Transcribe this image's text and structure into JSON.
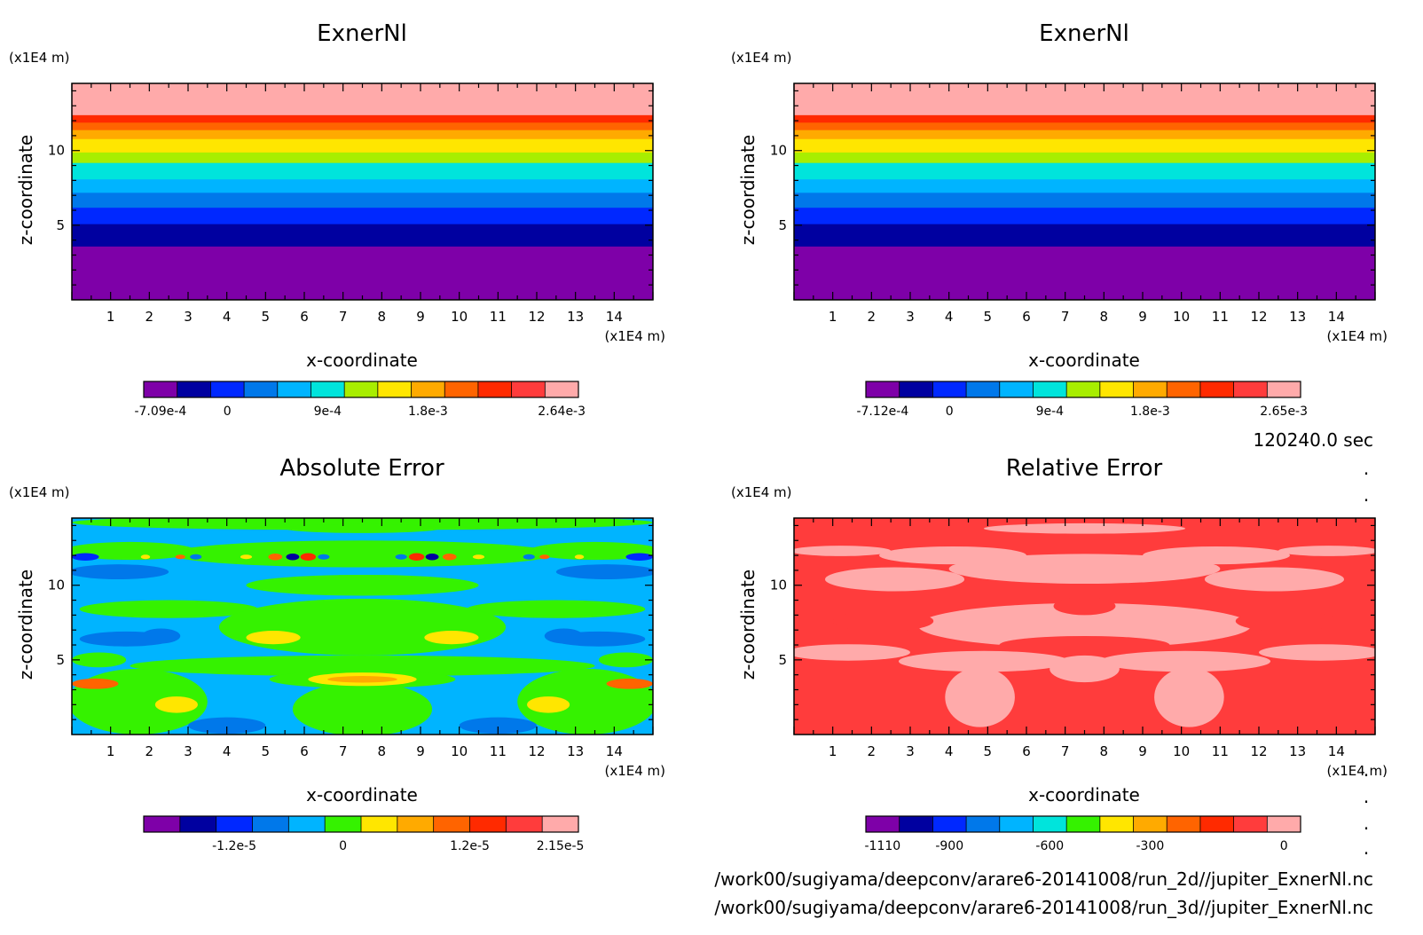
{
  "time_label": "120240.0 sec",
  "files": [
    "/work00/sugiyama/deepconv/arare6-20141008/run_2d//jupiter_ExnerNl.nc",
    "/work00/sugiyama/deepconv/arare6-20141008/run_3d//jupiter_ExnerNl.nc"
  ],
  "colors": {
    "c0": "#7e00a8",
    "c1": "#0000a0",
    "c2": "#0028ff",
    "c3": "#0078ea",
    "c4": "#00b4ff",
    "c5": "#00e4dc",
    "c6": "#35f200",
    "c7": "#a8ee00",
    "c8": "#ffe600",
    "c9": "#ffaa00",
    "c10": "#ff6400",
    "c11": "#ff2a00",
    "c12": "#ff3c3c",
    "c13": "#ffaaaa"
  },
  "chart_data": [
    {
      "type": "heatmap",
      "title": "ExnerNl",
      "xlabel": "x-coordinate",
      "ylabel": "z-coordinate",
      "x_unit": "(x1E4 m)",
      "z_unit": "(x1E4 m)",
      "xlim": [
        0,
        15
      ],
      "zlim": [
        0,
        14.5
      ],
      "xticks": [
        1,
        2,
        3,
        4,
        5,
        6,
        7,
        8,
        9,
        10,
        11,
        12,
        13,
        14
      ],
      "zticks": [
        5,
        10
      ],
      "pattern": "horizontal-bands",
      "bands": [
        {
          "z0": 0,
          "z1": 3.6,
          "color": "c0"
        },
        {
          "z0": 3.6,
          "z1": 5.1,
          "color": "c1"
        },
        {
          "z0": 5.1,
          "z1": 6.2,
          "color": "c2"
        },
        {
          "z0": 6.2,
          "z1": 7.2,
          "color": "c3"
        },
        {
          "z0": 7.2,
          "z1": 8.1,
          "color": "c4"
        },
        {
          "z0": 8.1,
          "z1": 9.2,
          "color": "c5"
        },
        {
          "z0": 9.2,
          "z1": 9.9,
          "color": "c7"
        },
        {
          "z0": 9.9,
          "z1": 10.8,
          "color": "c8"
        },
        {
          "z0": 10.8,
          "z1": 11.4,
          "color": "c9"
        },
        {
          "z0": 11.4,
          "z1": 11.9,
          "color": "c10"
        },
        {
          "z0": 11.9,
          "z1": 12.4,
          "color": "c11"
        },
        {
          "z0": 12.4,
          "z1": 14.5,
          "color": "c13"
        }
      ],
      "colorbar": {
        "colors": [
          "c0",
          "c1",
          "c2",
          "c3",
          "c4",
          "c5",
          "c7",
          "c8",
          "c9",
          "c10",
          "c11",
          "c12",
          "c13"
        ],
        "labels": [
          "-7.09e-4",
          "0",
          "9e-4",
          "1.8e-3",
          "2.64e-3"
        ]
      }
    },
    {
      "type": "heatmap",
      "title": "ExnerNl",
      "xlabel": "x-coordinate",
      "ylabel": "z-coordinate",
      "x_unit": "(x1E4 m)",
      "z_unit": "(x1E4 m)",
      "xlim": [
        0,
        15
      ],
      "zlim": [
        0,
        14.5
      ],
      "xticks": [
        1,
        2,
        3,
        4,
        5,
        6,
        7,
        8,
        9,
        10,
        11,
        12,
        13,
        14
      ],
      "zticks": [
        5,
        10
      ],
      "pattern": "horizontal-bands",
      "bands": [
        {
          "z0": 0,
          "z1": 3.6,
          "color": "c0"
        },
        {
          "z0": 3.6,
          "z1": 5.1,
          "color": "c1"
        },
        {
          "z0": 5.1,
          "z1": 6.2,
          "color": "c2"
        },
        {
          "z0": 6.2,
          "z1": 7.2,
          "color": "c3"
        },
        {
          "z0": 7.2,
          "z1": 8.1,
          "color": "c4"
        },
        {
          "z0": 8.1,
          "z1": 9.2,
          "color": "c5"
        },
        {
          "z0": 9.2,
          "z1": 9.9,
          "color": "c7"
        },
        {
          "z0": 9.9,
          "z1": 10.8,
          "color": "c8"
        },
        {
          "z0": 10.8,
          "z1": 11.4,
          "color": "c9"
        },
        {
          "z0": 11.4,
          "z1": 11.9,
          "color": "c10"
        },
        {
          "z0": 11.9,
          "z1": 12.4,
          "color": "c11"
        },
        {
          "z0": 12.4,
          "z1": 14.5,
          "color": "c13"
        }
      ],
      "colorbar": {
        "colors": [
          "c0",
          "c1",
          "c2",
          "c3",
          "c4",
          "c5",
          "c7",
          "c8",
          "c9",
          "c10",
          "c11",
          "c12",
          "c13"
        ],
        "labels": [
          "-7.12e-4",
          "0",
          "9e-4",
          "1.8e-3",
          "2.65e-3"
        ]
      }
    },
    {
      "type": "heatmap",
      "title": "Absolute Error",
      "xlabel": "x-coordinate",
      "ylabel": "z-coordinate",
      "x_unit": "(x1E4 m)",
      "z_unit": "(x1E4 m)",
      "xlim": [
        0,
        15
      ],
      "zlim": [
        0,
        14.5
      ],
      "xticks": [
        1,
        2,
        3,
        4,
        5,
        6,
        7,
        8,
        9,
        10,
        11,
        12,
        13,
        14
      ],
      "zticks": [
        5,
        10
      ],
      "pattern": "blobs",
      "background": "c4",
      "blobs": [
        {
          "x": 7.5,
          "z": 14.2,
          "rx": 7.5,
          "rz": 0.5,
          "color": "c6"
        },
        {
          "x": 7.5,
          "z": 13.8,
          "rx": 2.0,
          "rz": 0.3,
          "color": "c6"
        },
        {
          "x": 1.5,
          "z": 12.3,
          "rx": 1.7,
          "rz": 0.6,
          "color": "c6"
        },
        {
          "x": 13.5,
          "z": 12.3,
          "rx": 1.7,
          "rz": 0.6,
          "color": "c6"
        },
        {
          "x": 7.5,
          "z": 12.1,
          "rx": 5.0,
          "rz": 0.9,
          "color": "c6"
        },
        {
          "x": 7.5,
          "z": 10.0,
          "rx": 3.0,
          "rz": 0.7,
          "color": "c6"
        },
        {
          "x": 2.5,
          "z": 8.4,
          "rx": 2.3,
          "rz": 0.6,
          "color": "c6"
        },
        {
          "x": 12.5,
          "z": 8.4,
          "rx": 2.3,
          "rz": 0.6,
          "color": "c6"
        },
        {
          "x": 7.5,
          "z": 7.2,
          "rx": 3.7,
          "rz": 1.9,
          "color": "c6"
        },
        {
          "x": 7.5,
          "z": 4.6,
          "rx": 6.0,
          "rz": 0.7,
          "color": "c6"
        },
        {
          "x": 0.7,
          "z": 5.0,
          "rx": 0.7,
          "rz": 0.5,
          "color": "c6"
        },
        {
          "x": 14.3,
          "z": 5.0,
          "rx": 0.7,
          "rz": 0.5,
          "color": "c6"
        },
        {
          "x": 7.5,
          "z": 3.7,
          "rx": 2.4,
          "rz": 0.6,
          "color": "c6"
        },
        {
          "x": 1.7,
          "z": 2.2,
          "rx": 1.8,
          "rz": 2.2,
          "color": "c6"
        },
        {
          "x": 13.3,
          "z": 2.2,
          "rx": 1.8,
          "rz": 2.2,
          "color": "c6"
        },
        {
          "x": 7.5,
          "z": 1.7,
          "rx": 1.8,
          "rz": 1.8,
          "color": "c6"
        },
        {
          "x": 0.6,
          "z": 3.4,
          "rx": 0.6,
          "rz": 0.35,
          "color": "c10"
        },
        {
          "x": 14.4,
          "z": 3.4,
          "rx": 0.6,
          "rz": 0.35,
          "color": "c10"
        },
        {
          "x": 5.2,
          "z": 6.5,
          "rx": 0.7,
          "rz": 0.45,
          "color": "c8"
        },
        {
          "x": 9.8,
          "z": 6.5,
          "rx": 0.7,
          "rz": 0.45,
          "color": "c8"
        },
        {
          "x": 7.5,
          "z": 3.7,
          "rx": 1.4,
          "rz": 0.45,
          "color": "c8"
        },
        {
          "x": 7.5,
          "z": 3.7,
          "rx": 0.9,
          "rz": 0.22,
          "color": "c9"
        },
        {
          "x": 2.7,
          "z": 2.0,
          "rx": 0.55,
          "rz": 0.55,
          "color": "c8"
        },
        {
          "x": 12.3,
          "z": 2.0,
          "rx": 0.55,
          "rz": 0.55,
          "color": "c8"
        },
        {
          "x": 1.2,
          "z": 10.9,
          "rx": 1.3,
          "rz": 0.5,
          "color": "c3"
        },
        {
          "x": 13.8,
          "z": 10.9,
          "rx": 1.3,
          "rz": 0.5,
          "color": "c3"
        },
        {
          "x": 1.4,
          "z": 6.4,
          "rx": 1.2,
          "rz": 0.5,
          "color": "c3"
        },
        {
          "x": 13.6,
          "z": 6.4,
          "rx": 1.2,
          "rz": 0.5,
          "color": "c3"
        },
        {
          "x": 2.3,
          "z": 6.6,
          "rx": 0.5,
          "rz": 0.5,
          "color": "c3"
        },
        {
          "x": 12.7,
          "z": 6.6,
          "rx": 0.5,
          "rz": 0.5,
          "color": "c3"
        },
        {
          "x": 4.0,
          "z": 0.6,
          "rx": 1.0,
          "rz": 0.55,
          "color": "c3"
        },
        {
          "x": 11.0,
          "z": 0.6,
          "rx": 1.0,
          "rz": 0.55,
          "color": "c3"
        },
        {
          "x": 0.35,
          "z": 11.9,
          "rx": 0.35,
          "rz": 0.25,
          "color": "c2"
        },
        {
          "x": 14.65,
          "z": 11.9,
          "rx": 0.35,
          "rz": 0.25,
          "color": "c2"
        },
        {
          "x": 4.5,
          "z": 11.9,
          "rx": 0.15,
          "rz": 0.15,
          "color": "c8"
        },
        {
          "x": 10.5,
          "z": 11.9,
          "rx": 0.15,
          "rz": 0.15,
          "color": "c8"
        },
        {
          "x": 5.25,
          "z": 11.9,
          "rx": 0.18,
          "rz": 0.22,
          "color": "c10"
        },
        {
          "x": 9.75,
          "z": 11.9,
          "rx": 0.18,
          "rz": 0.22,
          "color": "c10"
        },
        {
          "x": 5.7,
          "z": 11.9,
          "rx": 0.17,
          "rz": 0.22,
          "color": "c1"
        },
        {
          "x": 9.3,
          "z": 11.9,
          "rx": 0.17,
          "rz": 0.22,
          "color": "c1"
        },
        {
          "x": 6.1,
          "z": 11.9,
          "rx": 0.2,
          "rz": 0.25,
          "color": "c11"
        },
        {
          "x": 8.9,
          "z": 11.9,
          "rx": 0.2,
          "rz": 0.25,
          "color": "c11"
        },
        {
          "x": 6.5,
          "z": 11.9,
          "rx": 0.15,
          "rz": 0.18,
          "color": "c3"
        },
        {
          "x": 8.5,
          "z": 11.9,
          "rx": 0.15,
          "rz": 0.18,
          "color": "c3"
        },
        {
          "x": 3.2,
          "z": 11.9,
          "rx": 0.15,
          "rz": 0.18,
          "color": "c3"
        },
        {
          "x": 11.8,
          "z": 11.9,
          "rx": 0.15,
          "rz": 0.18,
          "color": "c3"
        },
        {
          "x": 2.8,
          "z": 11.9,
          "rx": 0.13,
          "rz": 0.15,
          "color": "c10"
        },
        {
          "x": 12.2,
          "z": 11.9,
          "rx": 0.13,
          "rz": 0.15,
          "color": "c10"
        },
        {
          "x": 1.9,
          "z": 11.9,
          "rx": 0.12,
          "rz": 0.15,
          "color": "c8"
        },
        {
          "x": 13.1,
          "z": 11.9,
          "rx": 0.12,
          "rz": 0.15,
          "color": "c8"
        }
      ],
      "colorbar": {
        "colors": [
          "c0",
          "c1",
          "c2",
          "c3",
          "c4",
          "c6",
          "c8",
          "c9",
          "c10",
          "c11",
          "c12",
          "c13"
        ],
        "labels": [
          "-1.2e-5",
          "0",
          "1.2e-5",
          "2.15e-5"
        ]
      }
    },
    {
      "type": "heatmap",
      "title": "Relative Error",
      "xlabel": "x-coordinate",
      "ylabel": "z-coordinate",
      "x_unit": "(x1E4 m)",
      "z_unit": "(x1E4 m)",
      "xlim": [
        0,
        15
      ],
      "zlim": [
        0,
        14.5
      ],
      "xticks": [
        1,
        2,
        3,
        4,
        5,
        6,
        7,
        8,
        9,
        10,
        11,
        12,
        13,
        14
      ],
      "zticks": [
        5,
        10
      ],
      "pattern": "blobs",
      "background": "c12",
      "blobs": [
        {
          "x": 7.5,
          "z": 13.8,
          "rx": 2.6,
          "rz": 0.35,
          "color": "c13"
        },
        {
          "x": 1.2,
          "z": 12.3,
          "rx": 1.3,
          "rz": 0.35,
          "color": "c13"
        },
        {
          "x": 13.8,
          "z": 12.3,
          "rx": 1.3,
          "rz": 0.35,
          "color": "c13"
        },
        {
          "x": 4.1,
          "z": 12.0,
          "rx": 1.9,
          "rz": 0.6,
          "color": "c13"
        },
        {
          "x": 10.9,
          "z": 12.0,
          "rx": 1.9,
          "rz": 0.6,
          "color": "c13"
        },
        {
          "x": 7.5,
          "z": 11.1,
          "rx": 3.5,
          "rz": 1.0,
          "color": "c13"
        },
        {
          "x": 2.6,
          "z": 10.4,
          "rx": 1.8,
          "rz": 0.8,
          "color": "c13"
        },
        {
          "x": 12.4,
          "z": 10.4,
          "rx": 1.8,
          "rz": 0.8,
          "color": "c13"
        },
        {
          "x": 7.5,
          "z": 7.3,
          "rx": 4.3,
          "rz": 1.5,
          "color": "c13"
        },
        {
          "x": 1.4,
          "z": 5.5,
          "rx": 1.6,
          "rz": 0.55,
          "color": "c13"
        },
        {
          "x": 13.6,
          "z": 5.5,
          "rx": 1.6,
          "rz": 0.55,
          "color": "c13"
        },
        {
          "x": 4.9,
          "z": 4.9,
          "rx": 2.2,
          "rz": 0.7,
          "color": "c13"
        },
        {
          "x": 10.1,
          "z": 4.9,
          "rx": 2.2,
          "rz": 0.7,
          "color": "c13"
        },
        {
          "x": 7.5,
          "z": 4.4,
          "rx": 0.9,
          "rz": 0.9,
          "color": "c13"
        },
        {
          "x": 4.8,
          "z": 2.5,
          "rx": 0.9,
          "rz": 2.0,
          "color": "c13"
        },
        {
          "x": 10.2,
          "z": 2.5,
          "rx": 0.9,
          "rz": 2.0,
          "color": "c13"
        },
        {
          "x": 7.5,
          "z": 8.6,
          "rx": 0.8,
          "rz": 0.6,
          "color": "c12"
        },
        {
          "x": 7.5,
          "z": 6.0,
          "rx": 2.2,
          "rz": 0.6,
          "color": "c12"
        },
        {
          "x": 2.3,
          "z": 7.6,
          "rx": 1.3,
          "rz": 0.7,
          "color": "c12"
        },
        {
          "x": 12.7,
          "z": 7.6,
          "rx": 1.3,
          "rz": 0.7,
          "color": "c12"
        }
      ],
      "colorbar": {
        "colors": [
          "c0",
          "c1",
          "c2",
          "c3",
          "c4",
          "c5",
          "c6",
          "c8",
          "c9",
          "c10",
          "c11",
          "c12",
          "c13"
        ],
        "labels": [
          "-1110",
          "-900",
          "-600",
          "-300",
          "0"
        ]
      }
    }
  ]
}
